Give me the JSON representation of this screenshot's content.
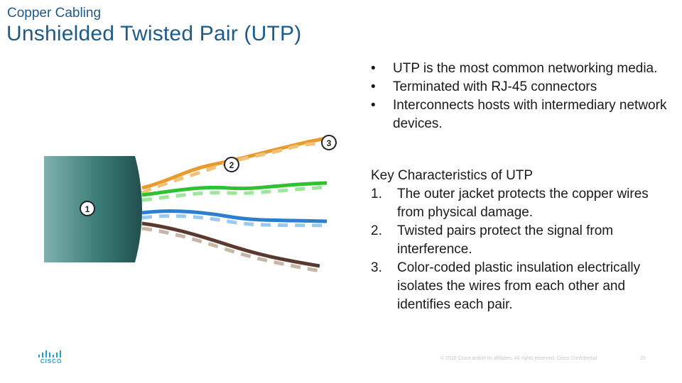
{
  "header": {
    "subtitle": "Copper Cabling",
    "title": "Unshielded Twisted Pair (UTP)"
  },
  "illustration": {
    "callouts": [
      "1",
      "2",
      "3"
    ],
    "colors": {
      "jacket": "#2f6f6b",
      "orange": "#e89a2c",
      "green": "#2fc12f",
      "blue": "#2c7fd0",
      "brown": "#5a3a2e"
    }
  },
  "bullets": [
    "UTP is the most common networking media.",
    "Terminated with RJ-45 connectors",
    "Interconnects hosts with intermediary network devices."
  ],
  "bullet_symbol": "•",
  "key": {
    "heading": "Key Characteristics of UTP",
    "items": [
      {
        "num": "1.",
        "text": "The outer jacket protects the copper wires from physical damage."
      },
      {
        "num": "2.",
        "text": "Twisted pairs protect the signal from interference."
      },
      {
        "num": "3.",
        "text": "Color-coded plastic insulation electrically isolates the wires from each other and identifies each pair."
      }
    ]
  },
  "footer": {
    "logo_text": "CISCO",
    "copyright": "© 2016  Cisco and/or its affiliates.  All rights reserved.   Cisco Confidential",
    "page": "25"
  }
}
